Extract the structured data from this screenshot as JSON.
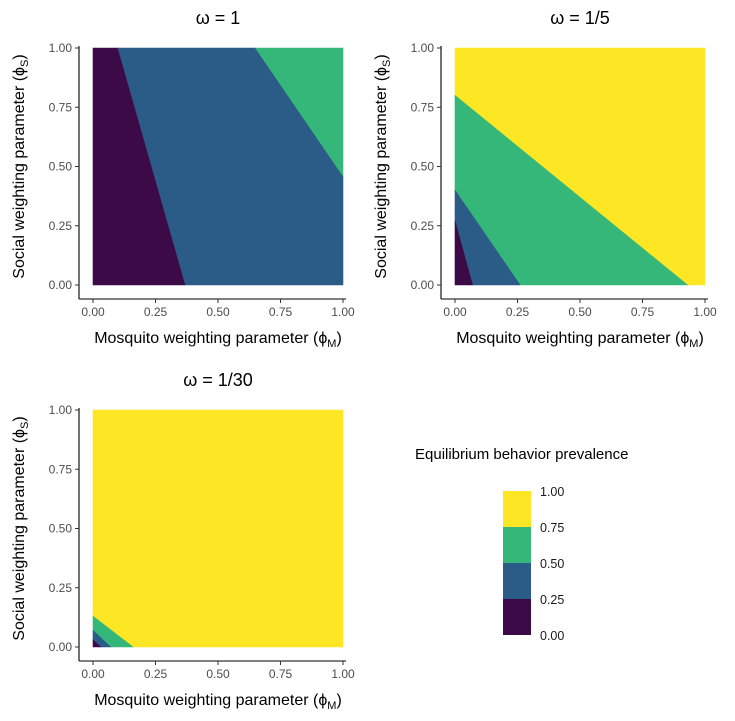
{
  "chart_data": [
    {
      "type": "heatmap",
      "title": "ω = 1",
      "omega": 1,
      "xlabel": "Mosquito weighting parameter",
      "xlabel_symbol": "ϕ",
      "xlabel_sub": "M",
      "ylabel": "Social weighting parameter",
      "ylabel_symbol": "ϕ",
      "ylabel_sub": "S",
      "xlim": [
        0,
        1
      ],
      "ylim": [
        0,
        1
      ],
      "xticks": [
        "0.00",
        "0.25",
        "0.50",
        "0.75",
        "1.00"
      ],
      "yticks": [
        "0.00",
        "0.25",
        "0.50",
        "0.75",
        "1.00"
      ],
      "regions": [
        {
          "bin": "0.00–0.25",
          "boundary": [
            [
              0,
              0
            ],
            [
              0,
              1
            ],
            [
              0.1,
              1
            ],
            [
              0.37,
              0
            ]
          ]
        },
        {
          "bin": "0.25–0.50",
          "boundary": [
            [
              0.1,
              1
            ],
            [
              0.65,
              1
            ],
            [
              1.0,
              0.46
            ],
            [
              1.0,
              0
            ],
            [
              0.37,
              0
            ]
          ]
        },
        {
          "bin": "0.50–0.75",
          "boundary": [
            [
              0.65,
              1
            ],
            [
              1,
              1
            ],
            [
              1,
              0.46
            ]
          ]
        }
      ]
    },
    {
      "type": "heatmap",
      "title": "ω = 1/5",
      "omega": 0.2,
      "xlabel": "Mosquito weighting parameter",
      "xlabel_symbol": "ϕ",
      "xlabel_sub": "M",
      "ylabel": "Social weighting parameter",
      "ylabel_symbol": "ϕ",
      "ylabel_sub": "S",
      "xlim": [
        0,
        1
      ],
      "ylim": [
        0,
        1
      ],
      "xticks": [
        "0.00",
        "0.25",
        "0.50",
        "0.75",
        "1.00"
      ],
      "yticks": [
        "0.00",
        "0.25",
        "0.50",
        "0.75",
        "1.00"
      ],
      "regions": [
        {
          "bin": "0.75–1.00",
          "boundary": [
            [
              0,
              0.8
            ],
            [
              0,
              1
            ],
            [
              1,
              1
            ],
            [
              1,
              0
            ],
            [
              0.93,
              0
            ]
          ]
        },
        {
          "bin": "0.50–0.75",
          "boundary": [
            [
              0,
              0.4
            ],
            [
              0,
              0.8
            ],
            [
              0.93,
              0
            ],
            [
              0.26,
              0
            ]
          ]
        },
        {
          "bin": "0.25–0.50",
          "boundary": [
            [
              0,
              0.27
            ],
            [
              0,
              0.4
            ],
            [
              0.26,
              0
            ],
            [
              0.07,
              0
            ]
          ]
        },
        {
          "bin": "0.00–0.25",
          "boundary": [
            [
              0,
              0
            ],
            [
              0,
              0.27
            ],
            [
              0.07,
              0
            ]
          ]
        }
      ]
    },
    {
      "type": "heatmap",
      "title": "ω = 1/30",
      "omega": 0.0333,
      "xlabel": "Mosquito weighting parameter",
      "xlabel_symbol": "ϕ",
      "xlabel_sub": "M",
      "ylabel": "Social weighting parameter",
      "ylabel_symbol": "ϕ",
      "ylabel_sub": "S",
      "xlim": [
        0,
        1
      ],
      "ylim": [
        0,
        1
      ],
      "xticks": [
        "0.00",
        "0.25",
        "0.50",
        "0.75",
        "1.00"
      ],
      "yticks": [
        "0.00",
        "0.25",
        "0.50",
        "0.75",
        "1.00"
      ],
      "regions": [
        {
          "bin": "0.75–1.00",
          "boundary": [
            [
              0,
              0.13
            ],
            [
              0,
              1
            ],
            [
              1,
              1
            ],
            [
              1,
              0
            ],
            [
              0.16,
              0
            ]
          ]
        },
        {
          "bin": "0.50–0.75",
          "boundary": [
            [
              0,
              0.07
            ],
            [
              0,
              0.13
            ],
            [
              0.16,
              0
            ],
            [
              0.07,
              0
            ]
          ]
        },
        {
          "bin": "0.25–0.50",
          "boundary": [
            [
              0,
              0.03
            ],
            [
              0,
              0.07
            ],
            [
              0.07,
              0
            ],
            [
              0.03,
              0
            ]
          ]
        },
        {
          "bin": "0.00–0.25",
          "boundary": [
            [
              0,
              0
            ],
            [
              0,
              0.03
            ],
            [
              0.03,
              0
            ]
          ]
        }
      ]
    }
  ],
  "legend": {
    "title": "Equilibrium behavior prevalence",
    "labels": [
      "1.00",
      "0.75",
      "0.50",
      "0.25",
      "0.00"
    ],
    "bins": [
      {
        "bin": "0.75–1.00",
        "color": "#fde725"
      },
      {
        "bin": "0.50–0.75",
        "color": "#35b779"
      },
      {
        "bin": "0.25–0.50",
        "color": "#2b5c87"
      },
      {
        "bin": "0.00–0.25",
        "color": "#3b0a47"
      }
    ]
  }
}
